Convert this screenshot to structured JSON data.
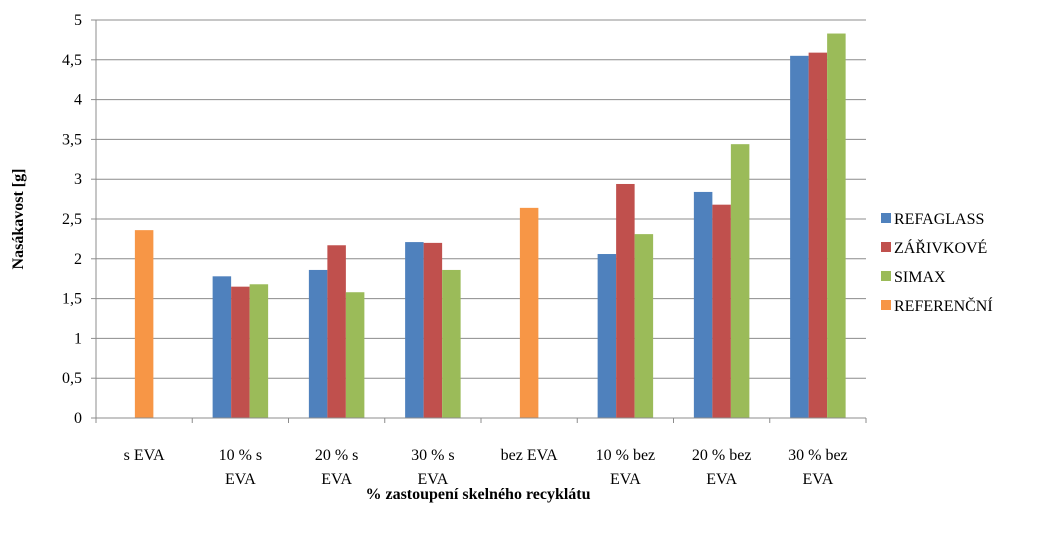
{
  "chart_data": {
    "type": "bar",
    "categories": [
      [
        "s EVA"
      ],
      [
        "10 % s",
        "EVA"
      ],
      [
        "20 % s",
        "EVA"
      ],
      [
        "30 % s",
        "EVA"
      ],
      [
        "bez EVA"
      ],
      [
        "10 % bez",
        "EVA"
      ],
      [
        "20 % bez",
        "EVA"
      ],
      [
        "30 % bez",
        "EVA"
      ]
    ],
    "series": [
      {
        "name": "REFAGLASS",
        "color": "#4F81BD",
        "values": [
          null,
          1.78,
          1.86,
          2.21,
          null,
          2.06,
          2.84,
          4.55
        ]
      },
      {
        "name": "ZÁŘIVKOVÉ",
        "color": "#C0504D",
        "values": [
          null,
          1.65,
          2.17,
          2.2,
          null,
          2.94,
          2.68,
          4.59
        ]
      },
      {
        "name": "SIMAX",
        "color": "#9BBB59",
        "values": [
          null,
          1.68,
          1.58,
          1.86,
          null,
          2.31,
          3.44,
          4.83
        ]
      },
      {
        "name": "REFERENČNÍ",
        "color": "#F79646",
        "values": [
          2.36,
          null,
          null,
          null,
          2.64,
          null,
          null,
          null
        ]
      }
    ],
    "yticks": [
      "0",
      "0,5",
      "1",
      "1,5",
      "2",
      "2,5",
      "3",
      "3,5",
      "4",
      "4,5",
      "5"
    ],
    "ylim": [
      0,
      5
    ],
    "xlabel": "% zastoupení skelného recyklátu",
    "ylabel": "Nasákavost [g]",
    "grid": true,
    "legend_position": "right"
  }
}
